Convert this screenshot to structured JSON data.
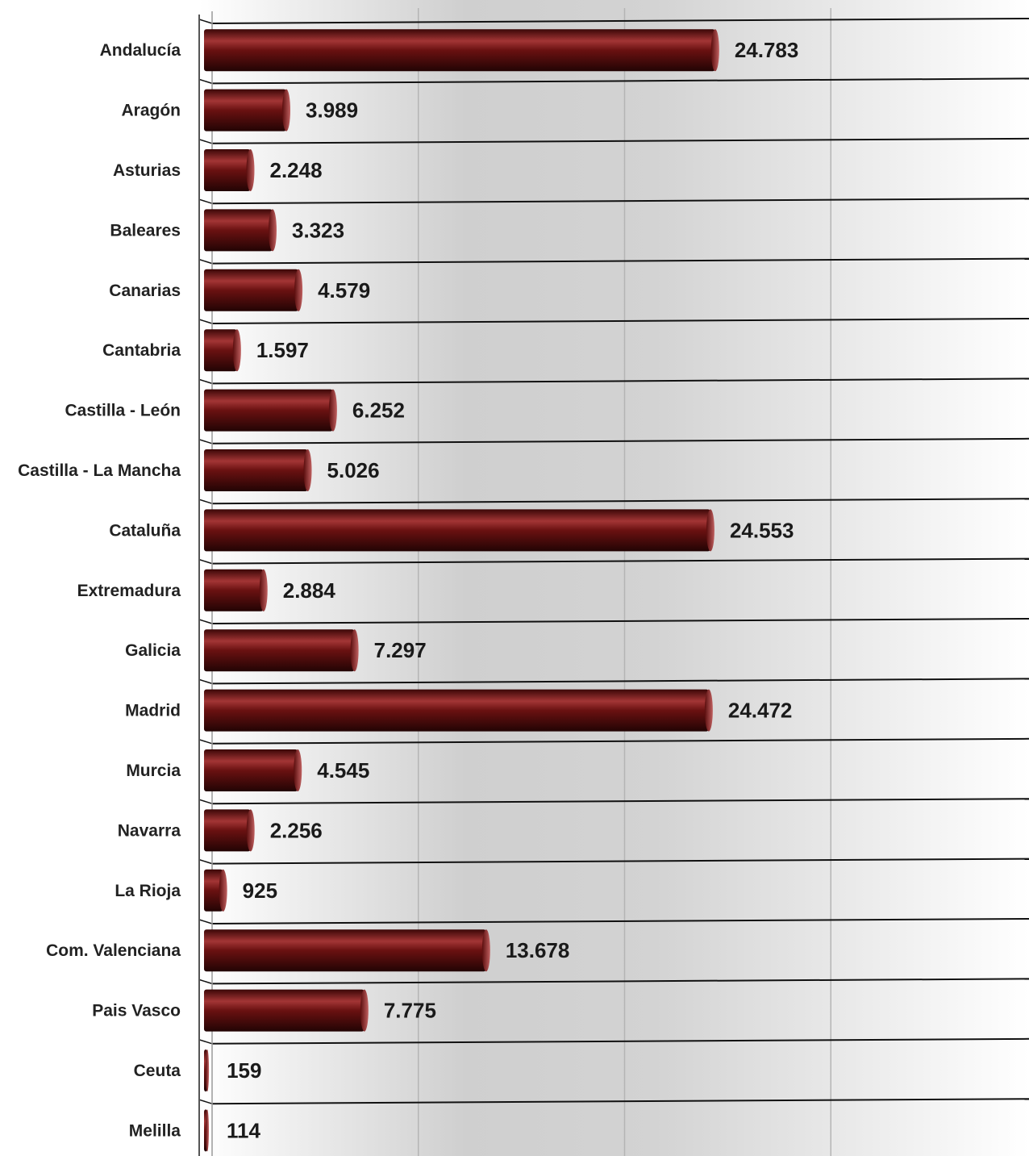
{
  "chart_data": {
    "type": "bar",
    "orientation": "horizontal",
    "categories": [
      "Andalucía",
      "Aragón",
      "Asturias",
      "Baleares",
      "Canarias",
      "Cantabria",
      "Castilla - León",
      "Castilla - La Mancha",
      "Cataluña",
      "Extremadura",
      "Galicia",
      "Madrid",
      "Murcia",
      "Navarra",
      "La Rioja",
      "Com. Valenciana",
      "Pais Vasco",
      "Ceuta",
      "Melilla"
    ],
    "values": [
      24783,
      3989,
      2248,
      3323,
      4579,
      1597,
      6252,
      5026,
      24553,
      2884,
      7297,
      24472,
      4545,
      2256,
      925,
      13678,
      7775,
      159,
      114
    ],
    "value_labels": [
      "24.783",
      "3.989",
      "2.248",
      "3.323",
      "4.579",
      "1.597",
      "6.252",
      "5.026",
      "24.553",
      "2.884",
      "7.297",
      "24.472",
      "4.545",
      "2.256",
      "925",
      "13.678",
      "7.775",
      "159",
      "114"
    ],
    "title": "",
    "xlabel": "",
    "ylabel": "",
    "xlim": [
      0,
      40000
    ],
    "grid": true,
    "bar_color": "#6e1212",
    "legend": "none"
  }
}
